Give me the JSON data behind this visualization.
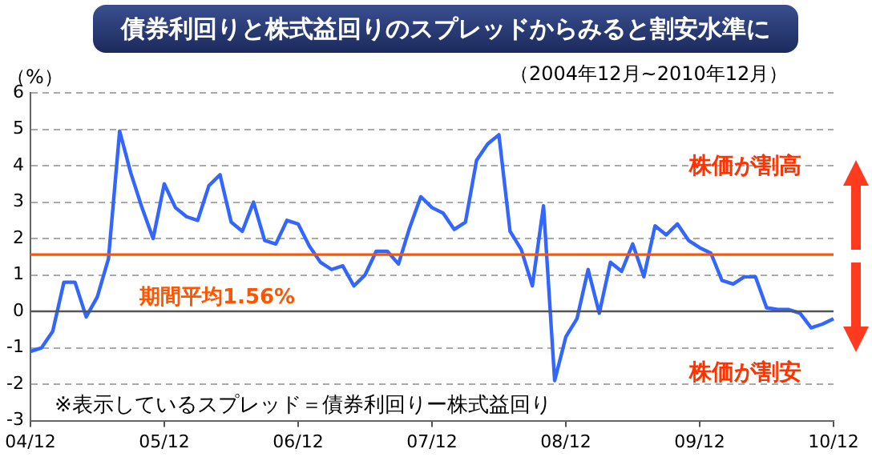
{
  "chart_data": {
    "type": "line",
    "title": "債券利回りと株式益回りのスプレッドからみると割安水準に",
    "subtitle": "（2004年12月~2010年12月）",
    "ylabel": "（%）",
    "categories": [
      "04/12",
      null,
      null,
      null,
      null,
      null,
      null,
      null,
      null,
      null,
      null,
      null,
      "05/12",
      null,
      null,
      null,
      null,
      null,
      null,
      null,
      null,
      null,
      null,
      null,
      "06/12",
      null,
      null,
      null,
      null,
      null,
      null,
      null,
      null,
      null,
      null,
      null,
      "07/12",
      null,
      null,
      null,
      null,
      null,
      null,
      null,
      null,
      null,
      null,
      null,
      "08/12",
      null,
      null,
      null,
      null,
      null,
      null,
      null,
      null,
      null,
      null,
      null,
      "09/12",
      null,
      null,
      null,
      null,
      null,
      null,
      null,
      null,
      null,
      null,
      null,
      "10/12"
    ],
    "series": [
      {
        "color": "#3366ff",
        "values": [
          -1.1,
          -1.0,
          -0.55,
          0.8,
          0.8,
          -0.15,
          0.4,
          1.45,
          4.95,
          3.8,
          2.85,
          2.0,
          3.5,
          2.85,
          2.6,
          2.5,
          3.45,
          3.75,
          2.45,
          2.2,
          3.0,
          1.95,
          1.85,
          2.5,
          2.4,
          1.8,
          1.35,
          1.15,
          1.25,
          0.7,
          1.0,
          1.65,
          1.65,
          1.3,
          2.3,
          3.15,
          2.85,
          2.7,
          2.25,
          2.45,
          4.15,
          4.6,
          4.85,
          2.2,
          1.7,
          0.7,
          2.9,
          -1.9,
          -0.7,
          -0.2,
          1.15,
          -0.05,
          1.35,
          1.1,
          1.85,
          0.95,
          2.35,
          2.1,
          2.4,
          1.95,
          1.75,
          1.6,
          0.85,
          0.75,
          0.95,
          0.95,
          0.1,
          0.05,
          0.05,
          -0.05,
          -0.45,
          -0.35,
          -0.2
        ]
      }
    ],
    "ylim": [
      -3,
      6
    ],
    "yticks": [
      -3,
      -2,
      -1,
      0,
      1,
      2,
      3,
      4,
      5,
      6
    ],
    "grid": "y",
    "legend": false,
    "marker": "none",
    "line_style": "solid",
    "ref_lines": [
      {
        "axis": "y",
        "value": 1.56,
        "label": "期間平均1.56%",
        "color": "#ff5500"
      }
    ],
    "annotations": [
      "株価が割高",
      "株価が割安",
      "※表示しているスプレッド＝債券利回りー株式益回り"
    ]
  }
}
